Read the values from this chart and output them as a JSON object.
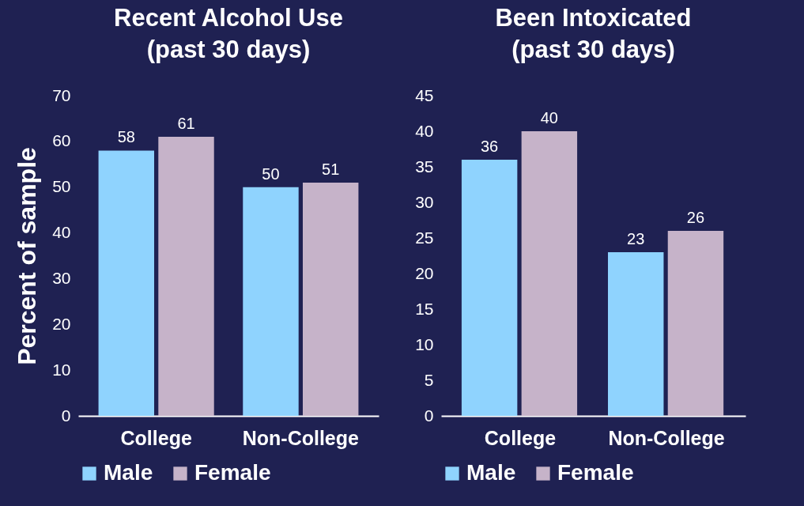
{
  "chart_data": [
    {
      "type": "bar",
      "title": "Recent Alcohol Use\n(past 30 days)",
      "ylabel": "Percent of sample",
      "categories": [
        "College",
        "Non-College"
      ],
      "series": [
        {
          "name": "Male",
          "color": "#8fd3fe",
          "values": [
            58,
            50
          ]
        },
        {
          "name": "Female",
          "color": "#c6b3c9",
          "values": [
            61,
            51
          ]
        }
      ],
      "ylim": [
        0,
        70
      ],
      "yticks": [
        0,
        10,
        20,
        30,
        40,
        50,
        60,
        70
      ],
      "data_labels": true,
      "legend": "bottom",
      "grid": false
    },
    {
      "type": "bar",
      "title": "Been Intoxicated\n(past 30 days)",
      "categories": [
        "College",
        "Non-College"
      ],
      "series": [
        {
          "name": "Male",
          "color": "#8fd3fe",
          "values": [
            36,
            23
          ]
        },
        {
          "name": "Female",
          "color": "#c6b3c9",
          "values": [
            40,
            26
          ]
        }
      ],
      "ylim": [
        0,
        45
      ],
      "yticks": [
        0,
        5,
        10,
        15,
        20,
        25,
        30,
        35,
        40,
        45
      ],
      "data_labels": true,
      "legend": "bottom",
      "grid": false
    }
  ]
}
